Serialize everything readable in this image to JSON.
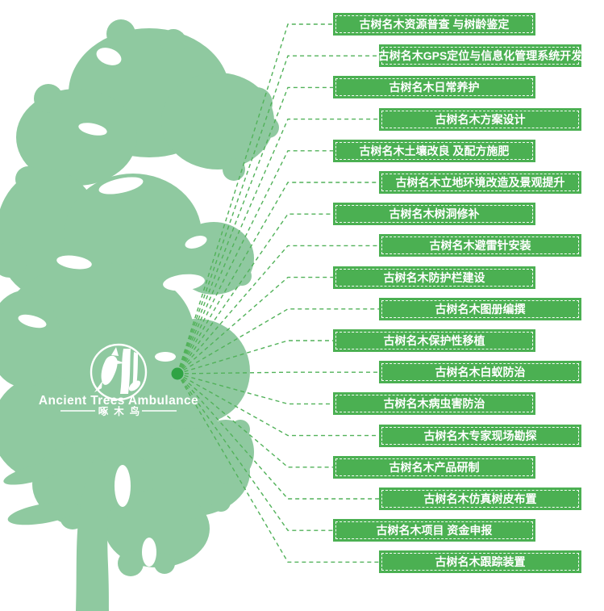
{
  "logo": {
    "icon": "woodpecker-icon",
    "title": "Ancient Trees Ambulance",
    "subtitle": "啄木鸟"
  },
  "diagram": {
    "hub_icon": "hub-dot",
    "services": [
      {
        "label": "古树名木资源普查 与树龄鉴定"
      },
      {
        "label": "古树名木GPS定位与信息化管理系统开发"
      },
      {
        "label": "古树名木日常养护"
      },
      {
        "label": "古树名木方案设计"
      },
      {
        "label": "古树名木土壤改良 及配方施肥"
      },
      {
        "label": "古树名木立地环境改造及景观提升"
      },
      {
        "label": "古树名木树洞修补"
      },
      {
        "label": "古树名木避雷针安装"
      },
      {
        "label": "古树名木防护栏建设"
      },
      {
        "label": "古树名木图册编撰"
      },
      {
        "label": "古树名木保护性移植"
      },
      {
        "label": "古树名木白蚁防治"
      },
      {
        "label": "古树名木病虫害防治"
      },
      {
        "label": "古树名木专家现场勘探"
      },
      {
        "label": "古树名木产品研制"
      },
      {
        "label": "古树名木仿真树皮布置"
      },
      {
        "label": "古树名木项目 资金申报"
      },
      {
        "label": "古树名木跟踪装置"
      }
    ]
  },
  "colors": {
    "label_green": "#4bb052",
    "line_green": "#52b25a",
    "tree_green": "#8fc9a0",
    "node_green": "#2fa344",
    "label_text": "#ffffff"
  }
}
